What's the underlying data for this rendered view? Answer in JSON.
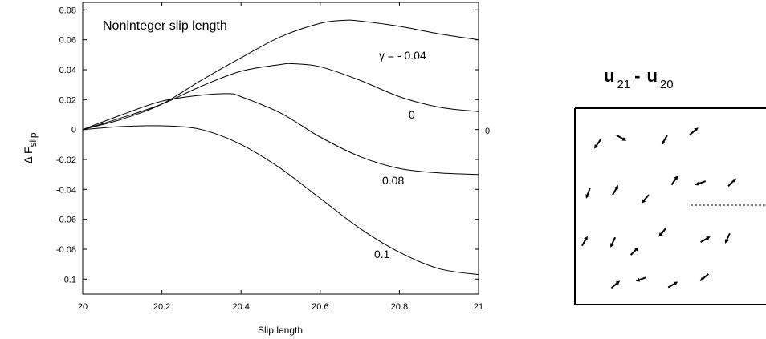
{
  "chart_data": [
    {
      "type": "line",
      "title": "Noninteger slip length",
      "xlabel": "Slip length",
      "ylabel_main": "Δ F",
      "ylabel_sub": "slip",
      "xlim": [
        20,
        21
      ],
      "ylim": [
        -0.11,
        0.085
      ],
      "xticks": [
        "20",
        "20.2",
        "20.4",
        "20.6",
        "20.8",
        "21"
      ],
      "yticks": [
        "0.08",
        "0.06",
        "0.04",
        "0.02",
        "0",
        "-0.02",
        "-0.04",
        "-0.06",
        "-0.08",
        "-0.1"
      ],
      "right_axis_label": "0",
      "grid": false,
      "series": [
        {
          "name": "γ  =  - 0.04",
          "x": [
            20,
            20.1,
            20.2,
            20.3,
            20.4,
            20.5,
            20.6,
            20.66,
            20.7,
            20.8,
            20.9,
            21
          ],
          "y": [
            0,
            0.007,
            0.017,
            0.033,
            0.048,
            0.062,
            0.071,
            0.073,
            0.0725,
            0.069,
            0.064,
            0.06
          ]
        },
        {
          "name": "0",
          "x": [
            20,
            20.1,
            20.2,
            20.3,
            20.4,
            20.5,
            20.53,
            20.6,
            20.7,
            20.8,
            20.9,
            21
          ],
          "y": [
            0,
            0.008,
            0.017,
            0.029,
            0.039,
            0.0435,
            0.044,
            0.042,
            0.033,
            0.022,
            0.015,
            0.012
          ]
        },
        {
          "name": "0.08",
          "x": [
            20,
            20.1,
            20.2,
            20.3,
            20.37,
            20.4,
            20.5,
            20.6,
            20.7,
            20.8,
            20.9,
            21
          ],
          "y": [
            0,
            0.01,
            0.019,
            0.023,
            0.024,
            0.022,
            0.011,
            -0.005,
            -0.018,
            -0.026,
            -0.029,
            -0.03
          ]
        },
        {
          "name": "0.1",
          "x": [
            20,
            20.1,
            20.2,
            20.3,
            20.4,
            20.5,
            20.6,
            20.7,
            20.8,
            20.9,
            21
          ],
          "y": [
            0,
            0.002,
            0.0025,
            0.0,
            -0.01,
            -0.026,
            -0.046,
            -0.066,
            -0.082,
            -0.093,
            -0.097
          ]
        }
      ]
    },
    {
      "type": "scatter",
      "title_main_1": "u",
      "title_sub_1": "21",
      "title_sep": "-",
      "title_main_2": "u",
      "title_sub_2": "20",
      "arrow_marks": [
        {
          "x": 0.12,
          "y": 0.18,
          "dir": 125
        },
        {
          "x": 0.24,
          "y": 0.15,
          "dir": 30
        },
        {
          "x": 0.47,
          "y": 0.16,
          "dir": 120
        },
        {
          "x": 0.62,
          "y": 0.12,
          "dir": -40
        },
        {
          "x": 0.07,
          "y": 0.43,
          "dir": 110
        },
        {
          "x": 0.21,
          "y": 0.42,
          "dir": -60
        },
        {
          "x": 0.37,
          "y": 0.46,
          "dir": 130
        },
        {
          "x": 0.52,
          "y": 0.37,
          "dir": -55
        },
        {
          "x": 0.66,
          "y": 0.38,
          "dir": 160
        },
        {
          "x": 0.82,
          "y": 0.38,
          "dir": -45
        },
        {
          "x": 0.05,
          "y": 0.68,
          "dir": -60
        },
        {
          "x": 0.2,
          "y": 0.68,
          "dir": 115
        },
        {
          "x": 0.31,
          "y": 0.73,
          "dir": -45
        },
        {
          "x": 0.46,
          "y": 0.63,
          "dir": 130
        },
        {
          "x": 0.68,
          "y": 0.67,
          "dir": -30
        },
        {
          "x": 0.8,
          "y": 0.66,
          "dir": 115
        },
        {
          "x": 0.21,
          "y": 0.9,
          "dir": -40
        },
        {
          "x": 0.35,
          "y": 0.87,
          "dir": 160
        },
        {
          "x": 0.51,
          "y": 0.9,
          "dir": -30
        },
        {
          "x": 0.68,
          "y": 0.86,
          "dir": 140
        }
      ]
    }
  ]
}
